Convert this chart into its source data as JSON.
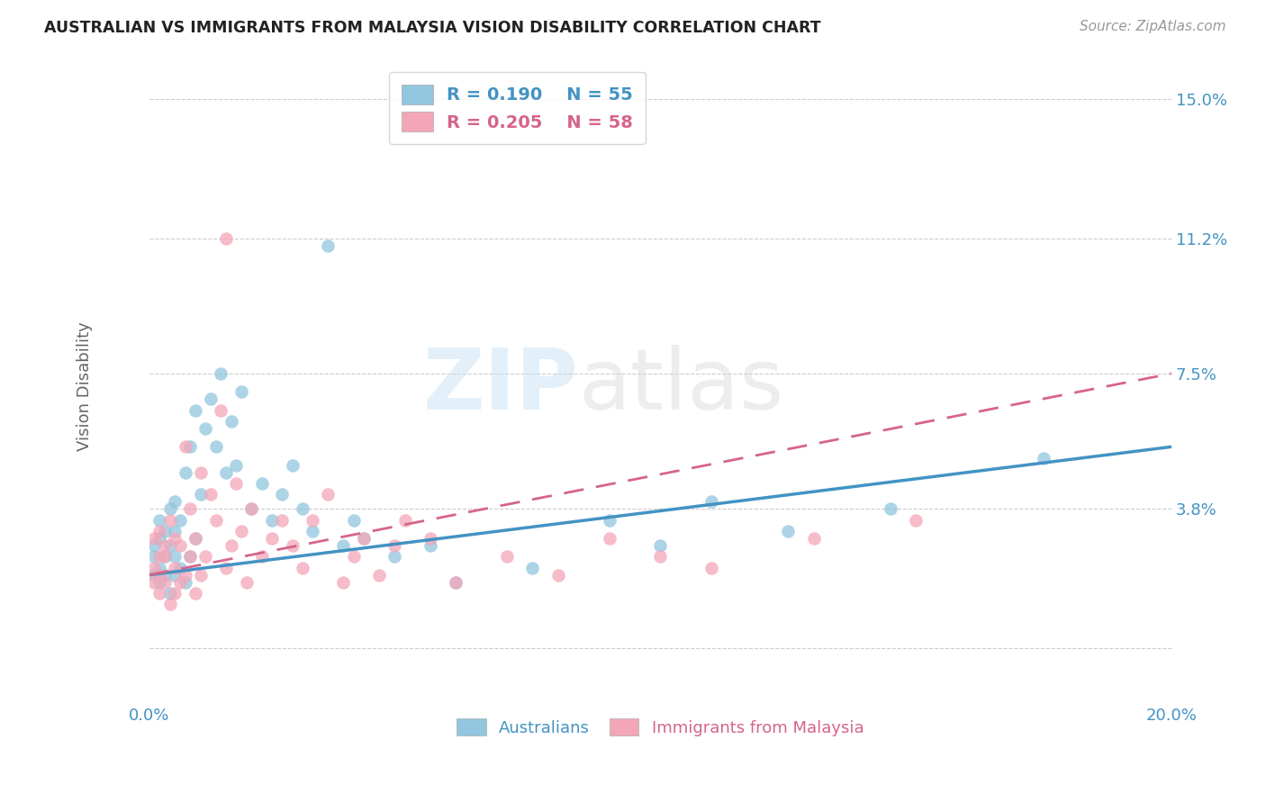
{
  "title": "AUSTRALIAN VS IMMIGRANTS FROM MALAYSIA VISION DISABILITY CORRELATION CHART",
  "source": "Source: ZipAtlas.com",
  "ylabel": "Vision Disability",
  "xlim": [
    0.0,
    0.2
  ],
  "ylim": [
    -0.015,
    0.158
  ],
  "yticks": [
    0.0,
    0.038,
    0.075,
    0.112,
    0.15
  ],
  "ytick_labels": [
    "",
    "3.8%",
    "7.5%",
    "11.2%",
    "15.0%"
  ],
  "xticks": [
    0.0,
    0.05,
    0.1,
    0.15,
    0.2
  ],
  "xtick_labels": [
    "0.0%",
    "",
    "",
    "",
    "20.0%"
  ],
  "legend_r1": "R = 0.190",
  "legend_n1": "N = 55",
  "legend_r2": "R = 0.205",
  "legend_n2": "N = 58",
  "blue_color": "#92c5de",
  "pink_color": "#f4a6b8",
  "line_blue": "#4393c3",
  "line_pink": "#d6648a",
  "watermark_zip": "ZIP",
  "watermark_atlas": "atlas",
  "australians_x": [
    0.001,
    0.001,
    0.001,
    0.002,
    0.002,
    0.002,
    0.002,
    0.003,
    0.003,
    0.003,
    0.004,
    0.004,
    0.004,
    0.005,
    0.005,
    0.005,
    0.005,
    0.006,
    0.006,
    0.007,
    0.007,
    0.008,
    0.008,
    0.009,
    0.009,
    0.01,
    0.011,
    0.012,
    0.013,
    0.014,
    0.015,
    0.016,
    0.017,
    0.018,
    0.02,
    0.022,
    0.024,
    0.026,
    0.028,
    0.03,
    0.032,
    0.035,
    0.038,
    0.04,
    0.042,
    0.048,
    0.055,
    0.06,
    0.075,
    0.09,
    0.1,
    0.11,
    0.125,
    0.145,
    0.175
  ],
  "australians_y": [
    0.02,
    0.025,
    0.028,
    0.018,
    0.022,
    0.03,
    0.035,
    0.02,
    0.025,
    0.032,
    0.015,
    0.028,
    0.038,
    0.02,
    0.025,
    0.032,
    0.04,
    0.022,
    0.035,
    0.018,
    0.048,
    0.025,
    0.055,
    0.03,
    0.065,
    0.042,
    0.06,
    0.068,
    0.055,
    0.075,
    0.048,
    0.062,
    0.05,
    0.07,
    0.038,
    0.045,
    0.035,
    0.042,
    0.05,
    0.038,
    0.032,
    0.11,
    0.028,
    0.035,
    0.03,
    0.025,
    0.028,
    0.018,
    0.022,
    0.035,
    0.028,
    0.04,
    0.032,
    0.038,
    0.052
  ],
  "malaysia_x": [
    0.001,
    0.001,
    0.001,
    0.002,
    0.002,
    0.002,
    0.002,
    0.003,
    0.003,
    0.003,
    0.004,
    0.004,
    0.005,
    0.005,
    0.005,
    0.006,
    0.006,
    0.007,
    0.007,
    0.008,
    0.008,
    0.009,
    0.009,
    0.01,
    0.01,
    0.011,
    0.012,
    0.013,
    0.014,
    0.015,
    0.015,
    0.016,
    0.017,
    0.018,
    0.019,
    0.02,
    0.022,
    0.024,
    0.026,
    0.028,
    0.03,
    0.032,
    0.035,
    0.038,
    0.04,
    0.042,
    0.045,
    0.048,
    0.05,
    0.055,
    0.06,
    0.07,
    0.08,
    0.09,
    0.1,
    0.11,
    0.13,
    0.15
  ],
  "malaysia_y": [
    0.018,
    0.022,
    0.03,
    0.015,
    0.02,
    0.025,
    0.032,
    0.018,
    0.025,
    0.028,
    0.012,
    0.035,
    0.015,
    0.022,
    0.03,
    0.018,
    0.028,
    0.02,
    0.055,
    0.025,
    0.038,
    0.015,
    0.03,
    0.02,
    0.048,
    0.025,
    0.042,
    0.035,
    0.065,
    0.022,
    0.112,
    0.028,
    0.045,
    0.032,
    0.018,
    0.038,
    0.025,
    0.03,
    0.035,
    0.028,
    0.022,
    0.035,
    0.042,
    0.018,
    0.025,
    0.03,
    0.02,
    0.028,
    0.035,
    0.03,
    0.018,
    0.025,
    0.02,
    0.03,
    0.025,
    0.022,
    0.03,
    0.035
  ],
  "blue_line_x": [
    0.0,
    0.2
  ],
  "blue_line_y": [
    0.02,
    0.055
  ],
  "pink_line_x": [
    0.0,
    0.2
  ],
  "pink_line_y": [
    0.02,
    0.075
  ]
}
